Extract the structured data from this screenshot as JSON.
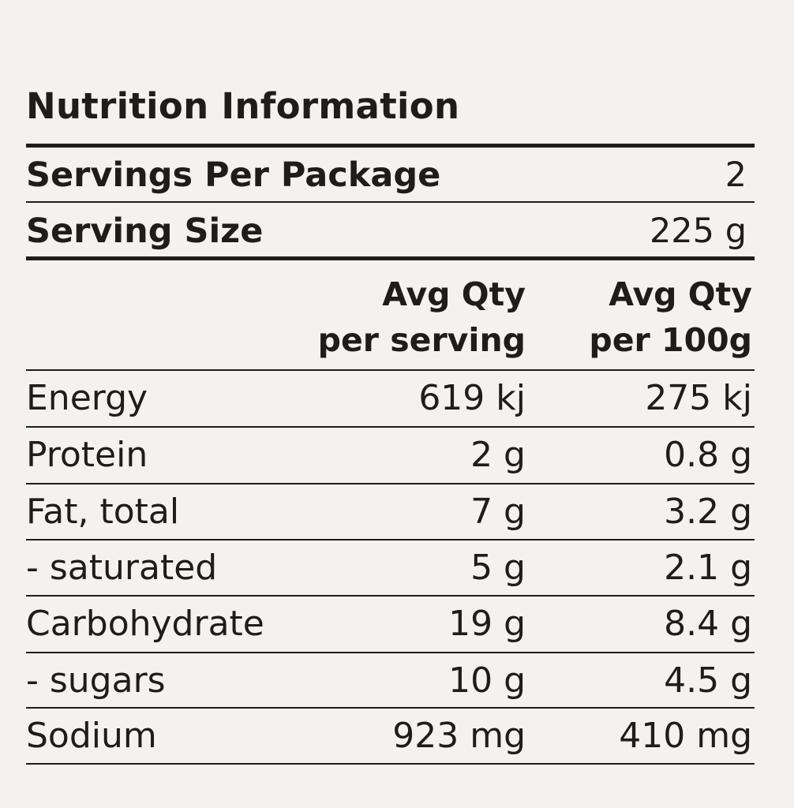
{
  "title": "Nutrition Information",
  "servings_per_package": {
    "label": "Servings Per Package",
    "value": "2"
  },
  "serving_size": {
    "label": "Serving Size",
    "value": "225 g"
  },
  "headers": {
    "per_serving": [
      "Avg Qty",
      "per serving"
    ],
    "per_100g": [
      "Avg Qty",
      "per 100g"
    ]
  },
  "rows": [
    {
      "name": "Energy",
      "per_serving": "619 kj",
      "per_100g": "275 kj"
    },
    {
      "name": "Protein",
      "per_serving": "2 g",
      "per_100g": "0.8 g"
    },
    {
      "name": "Fat, total",
      "per_serving": "7 g",
      "per_100g": "3.2 g"
    },
    {
      "name": "- saturated",
      "per_serving": "5 g",
      "per_100g": "2.1 g"
    },
    {
      "name": "Carbohydrate",
      "per_serving": "19 g",
      "per_100g": "8.4 g"
    },
    {
      "name": "- sugars",
      "per_serving": "10 g",
      "per_100g": "4.5 g"
    },
    {
      "name": "Sodium",
      "per_serving": "923 mg",
      "per_100g": "410 mg"
    }
  ]
}
